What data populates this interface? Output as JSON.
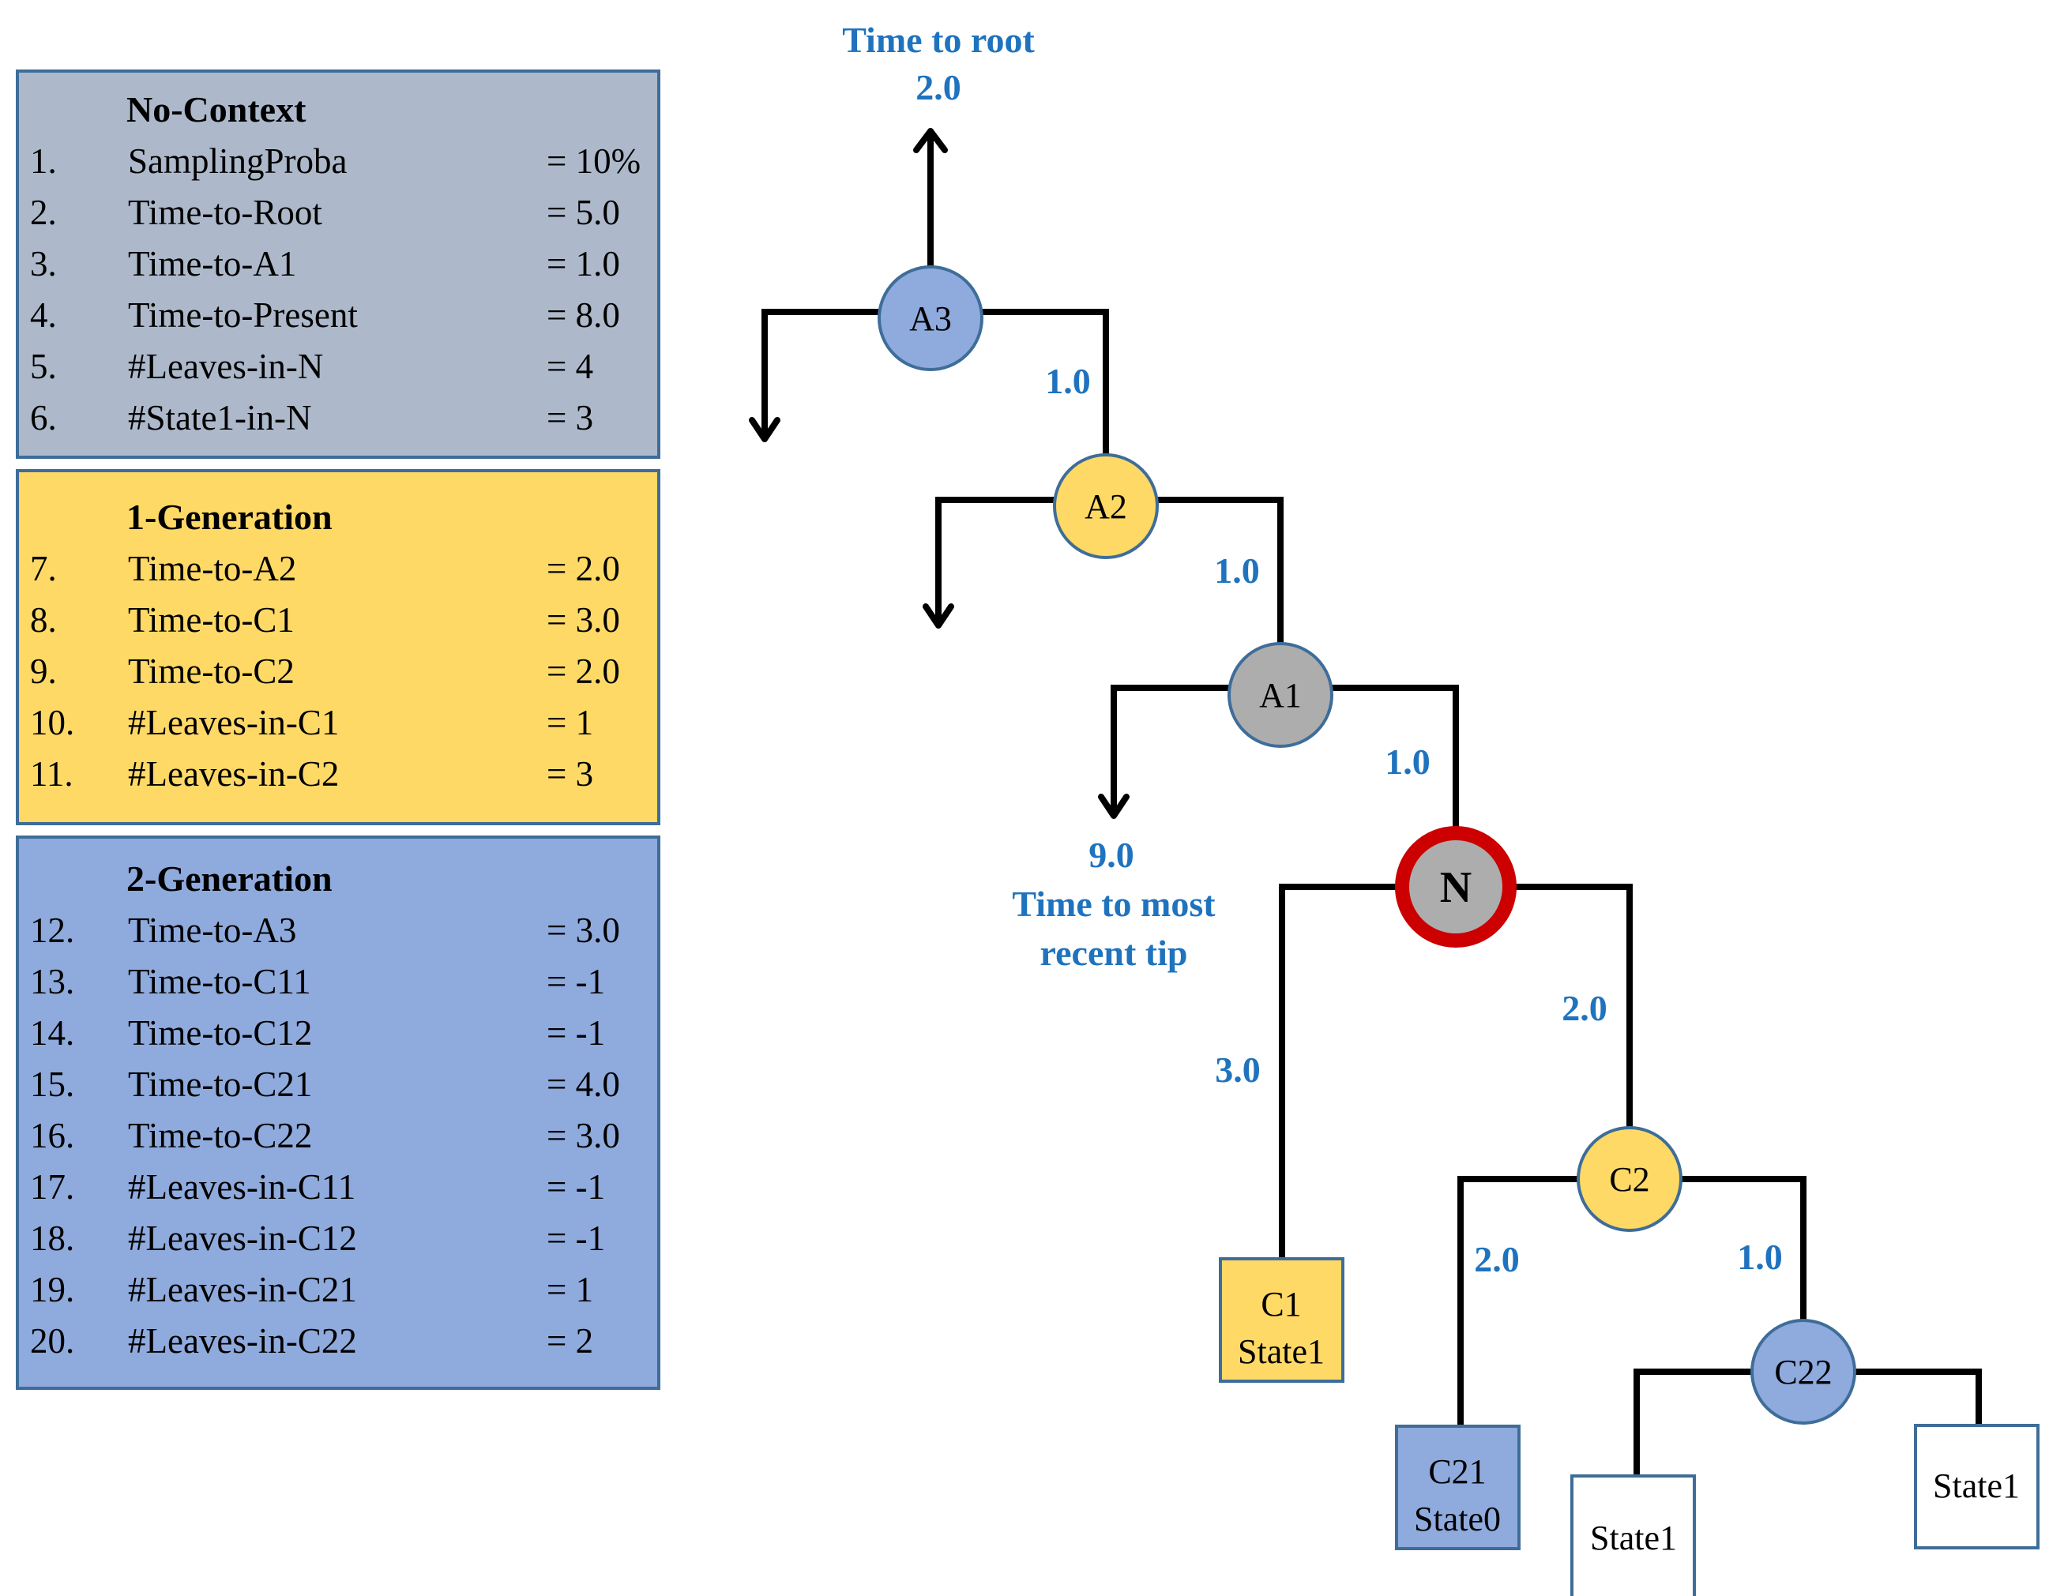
{
  "panels": [
    {
      "title": "No-Context",
      "color": "#adb9ca",
      "rows": [
        {
          "num": "1.",
          "name": "SamplingProba",
          "value": "= 10%"
        },
        {
          "num": "2.",
          "name": "Time-to-Root",
          "value": "= 5.0"
        },
        {
          "num": "3.",
          "name": "Time-to-A1",
          "value": "= 1.0"
        },
        {
          "num": "4.",
          "name": "Time-to-Present",
          "value": "= 8.0"
        },
        {
          "num": "5.",
          "name": "#Leaves-in-N",
          "value": "= 4"
        },
        {
          "num": "6.",
          "name": "#State1-in-N",
          "value": "= 3"
        }
      ]
    },
    {
      "title": "1-Generation",
      "color": "#fed966",
      "rows": [
        {
          "num": "7.",
          "name": "Time-to-A2",
          "value": "= 2.0"
        },
        {
          "num": "8.",
          "name": "Time-to-C1",
          "value": "= 3.0"
        },
        {
          "num": "9.",
          "name": "Time-to-C2",
          "value": "= 2.0"
        },
        {
          "num": "10.",
          "name": "#Leaves-in-C1",
          "value": "= 1"
        },
        {
          "num": "11.",
          "name": "#Leaves-in-C2",
          "value": "= 3"
        }
      ]
    },
    {
      "title": "2-Generation",
      "color": "#8faadc",
      "rows": [
        {
          "num": "12.",
          "name": "Time-to-A3",
          "value": "= 3.0"
        },
        {
          "num": "13.",
          "name": "Time-to-C11",
          "value": "= -1"
        },
        {
          "num": "14.",
          "name": "Time-to-C12",
          "value": "= -1"
        },
        {
          "num": "15.",
          "name": "Time-to-C21",
          "value": "= 4.0"
        },
        {
          "num": "16.",
          "name": "Time-to-C22",
          "value": "= 3.0"
        },
        {
          "num": "17.",
          "name": "#Leaves-in-C11",
          "value": "= -1"
        },
        {
          "num": "18.",
          "name": "#Leaves-in-C12",
          "value": "= -1"
        },
        {
          "num": "19.",
          "name": "#Leaves-in-C21",
          "value": "= 1"
        },
        {
          "num": "20.",
          "name": "#Leaves-in-C22",
          "value": "= 2"
        }
      ]
    }
  ],
  "tree": {
    "root_label_line1": "Time to root",
    "root_label_line2": "2.0",
    "tip_label_line1": "9.0",
    "tip_label_line2": "Time to most",
    "tip_label_line3": "recent tip",
    "nodes": {
      "A3": "A3",
      "A2": "A2",
      "A1": "A1",
      "N": "N",
      "C2": "C2",
      "C22": "C22"
    },
    "tips": {
      "C1_line1": "C1",
      "C1_line2": "State1",
      "C21_line1": "C21",
      "C21_line2": "State0",
      "C22a": "State1",
      "C22b": "State1"
    },
    "branch_lengths": {
      "A3_A2": "1.0",
      "A2_A1": "1.0",
      "A1_N": "1.0",
      "N_C1": "3.0",
      "N_C2": "2.0",
      "C2_C21": "2.0",
      "C2_C22": "1.0"
    },
    "colors": {
      "blue_node": "#8faadc",
      "yellow_node": "#fed966",
      "grey_node": "#adadad",
      "focus_ring": "#cc0000",
      "label_blue": "#1f73be",
      "outline": "#3e6d99"
    }
  }
}
